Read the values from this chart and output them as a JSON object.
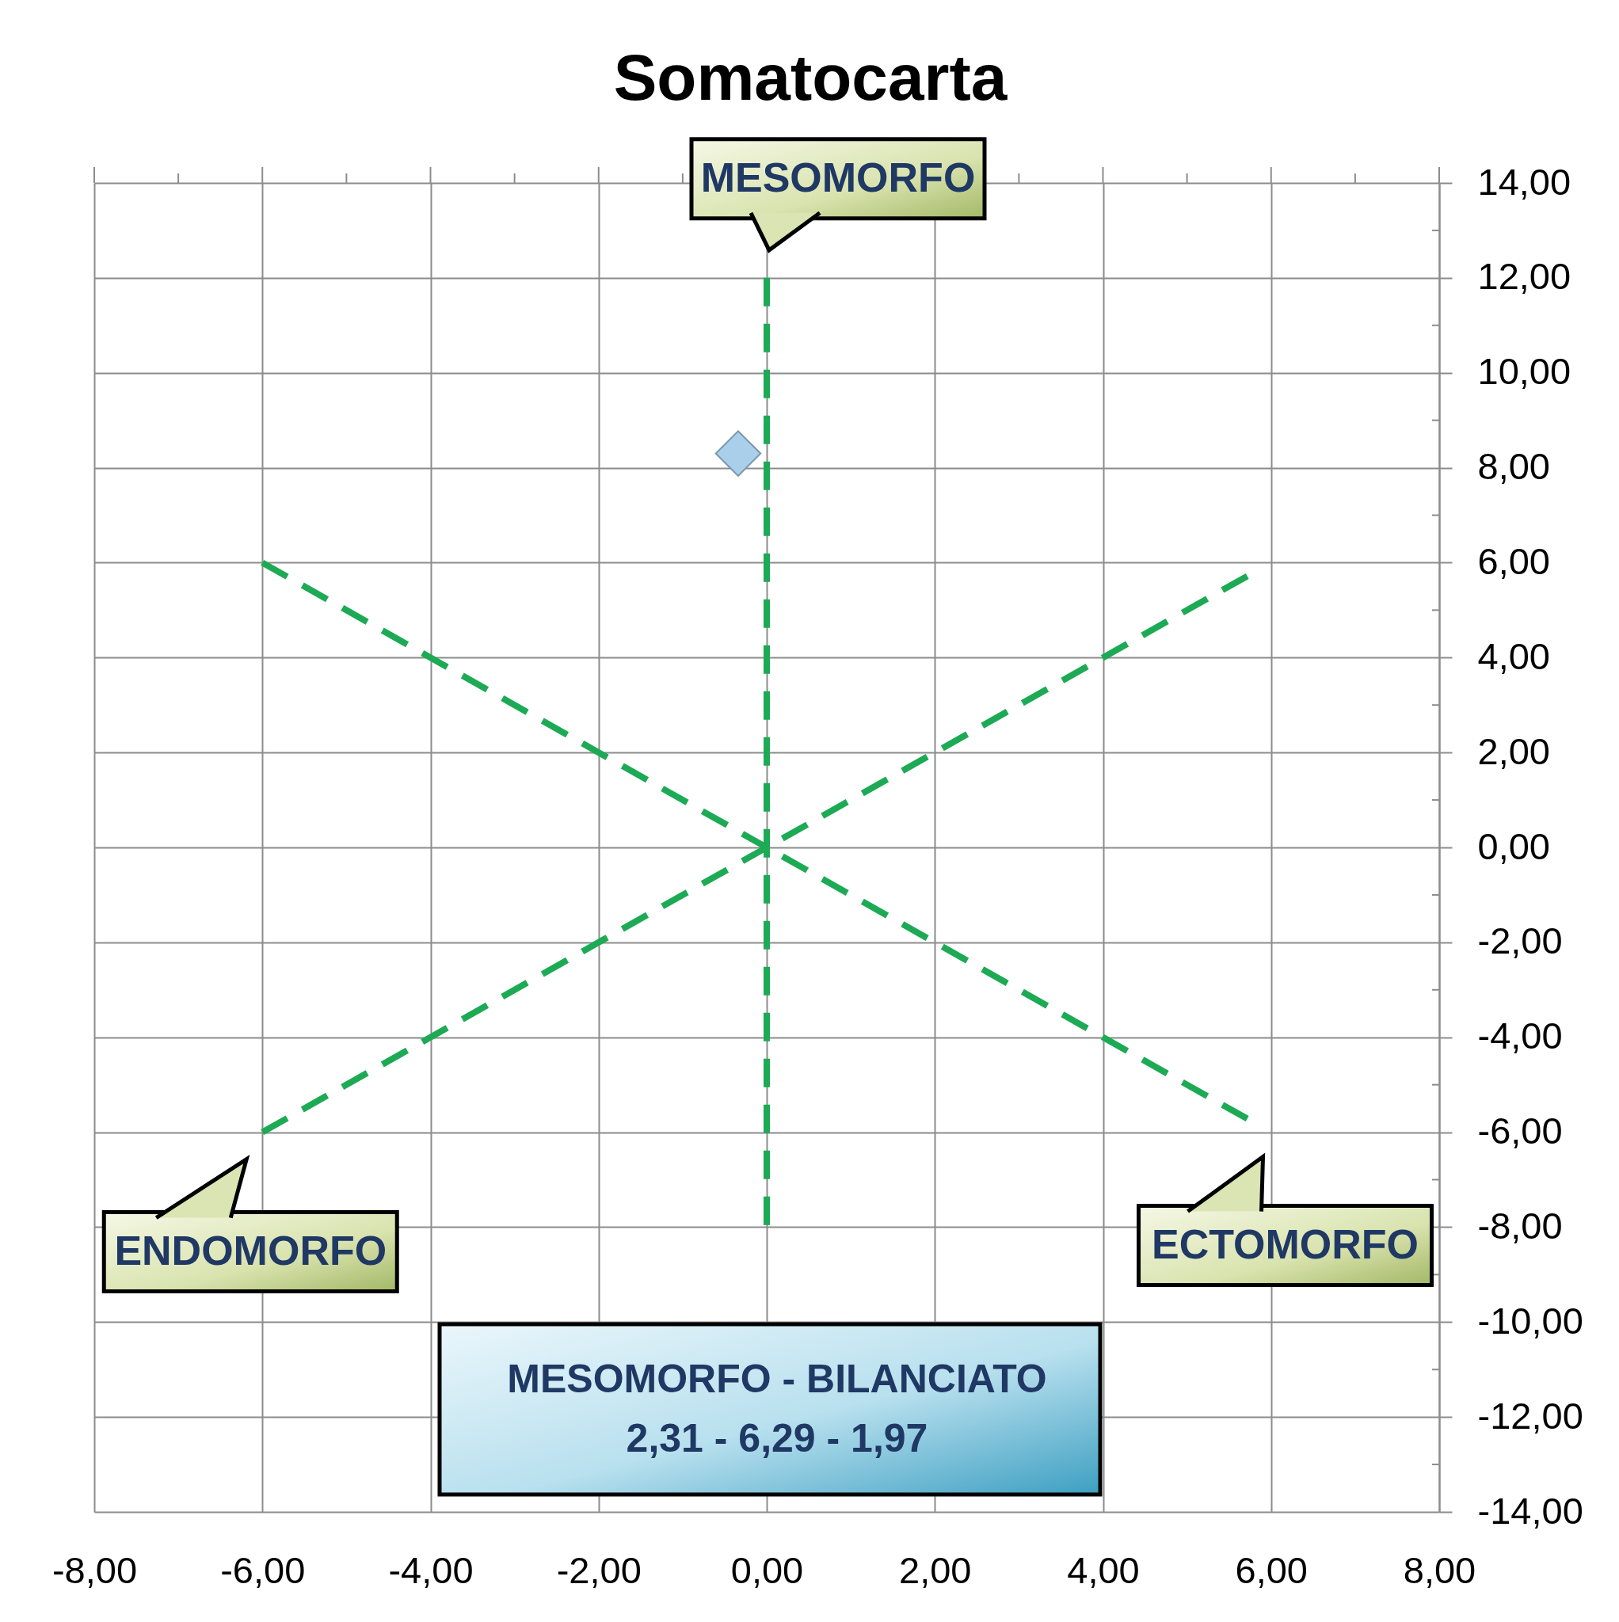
{
  "chart_data": {
    "type": "scatter",
    "title": "Somatocarta",
    "series": [
      {
        "type": "line",
        "color": "#1daa55",
        "x": [
          -6,
          5.8
        ],
        "values": [
          6,
          -5.8
        ]
      },
      {
        "type": "line",
        "color": "#1daa55",
        "x": [
          -6,
          5.8
        ],
        "values": [
          -6,
          5.8
        ]
      },
      {
        "type": "line",
        "color": "#1daa55",
        "x": [
          0,
          0
        ],
        "values": [
          12,
          -8
        ]
      },
      {
        "color": "#a9cfea",
        "x": [
          -0.34
        ],
        "values": [
          8.3
        ],
        "marker": "diamond"
      }
    ],
    "line_style": "dashed",
    "xlim": [
      -8,
      8
    ],
    "ylim": [
      -14,
      14
    ],
    "xticks": [
      {
        "value": -8,
        "label": "-8,00"
      },
      {
        "value": -7,
        "label": null
      },
      {
        "value": -6,
        "label": "-6,00"
      },
      {
        "value": -5,
        "label": null
      },
      {
        "value": -4,
        "label": "-4,00"
      },
      {
        "value": -3,
        "label": null
      },
      {
        "value": -2,
        "label": "-2,00"
      },
      {
        "value": -1,
        "label": null
      },
      {
        "value": 0,
        "label": "0,00"
      },
      {
        "value": 1,
        "label": null
      },
      {
        "value": 2,
        "label": "2,00"
      },
      {
        "value": 3,
        "label": null
      },
      {
        "value": 4,
        "label": "4,00"
      },
      {
        "value": 5,
        "label": null
      },
      {
        "value": 6,
        "label": "6,00"
      },
      {
        "value": 7,
        "label": null
      },
      {
        "value": 8,
        "label": "8,00"
      }
    ],
    "yticks": [
      {
        "value": -14,
        "label": "-14,00"
      },
      {
        "value": -13,
        "label": null
      },
      {
        "value": -12,
        "label": "-12,00"
      },
      {
        "value": -11,
        "label": null
      },
      {
        "value": -10,
        "label": "-10,00"
      },
      {
        "value": -9,
        "label": null
      },
      {
        "value": -8,
        "label": "-8,00"
      },
      {
        "value": -7,
        "label": null
      },
      {
        "value": -6,
        "label": "-6,00"
      },
      {
        "value": -5,
        "label": null
      },
      {
        "value": -4,
        "label": "-4,00"
      },
      {
        "value": -3,
        "label": null
      },
      {
        "value": -2,
        "label": "-2,00"
      },
      {
        "value": -1,
        "label": null
      },
      {
        "value": 0,
        "label": "0,00"
      },
      {
        "value": 1,
        "label": null
      },
      {
        "value": 2,
        "label": "2,00"
      },
      {
        "value": 3,
        "label": null
      },
      {
        "value": 4,
        "label": "4,00"
      },
      {
        "value": 5,
        "label": null
      },
      {
        "value": 6,
        "label": "6,00"
      },
      {
        "value": 7,
        "label": null
      },
      {
        "value": 8,
        "label": "8,00"
      },
      {
        "value": 9,
        "label": null
      },
      {
        "value": 10,
        "label": "10,00"
      },
      {
        "value": 11,
        "label": null
      },
      {
        "value": 12,
        "label": "12,00"
      },
      {
        "value": 13,
        "label": null
      },
      {
        "value": 14,
        "label": "14,00"
      }
    ],
    "grid": true,
    "annotations": [
      {
        "text": "MESOMORFO",
        "x": 0,
        "y": 12
      },
      {
        "text": "ENDOMORFO",
        "x": -6,
        "y": -6
      },
      {
        "text": "ECTOMORFO",
        "x": 5.8,
        "y": -5.8
      },
      "MESOMORFO - BILANCIATO",
      "2,31 - 6,29 - 1,97"
    ]
  }
}
